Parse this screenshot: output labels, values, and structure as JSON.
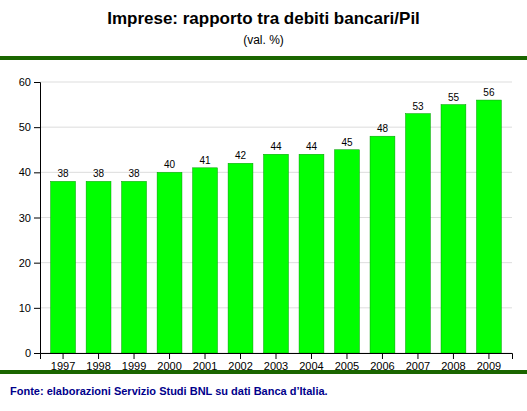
{
  "chart_data": {
    "type": "bar",
    "title": "Imprese: rapporto tra debiti bancari/Pil",
    "subtitle": "(val. %)",
    "footer": "Fonte: elaborazioni Servizio Studi BNL su dati Banca d’Italia.",
    "categories": [
      "1997",
      "1998",
      "1999",
      "2000",
      "2001",
      "2002",
      "2003",
      "2004",
      "2005",
      "2006",
      "2007",
      "2008",
      "2009"
    ],
    "values": [
      38,
      38,
      38,
      40,
      41,
      42,
      44,
      44,
      45,
      48,
      53,
      55,
      56
    ],
    "color": "#00FF00",
    "ylim": [
      0,
      60
    ],
    "yticks": [
      0,
      10,
      20,
      30,
      40,
      50,
      60
    ],
    "grid": true,
    "data_labels": true
  }
}
